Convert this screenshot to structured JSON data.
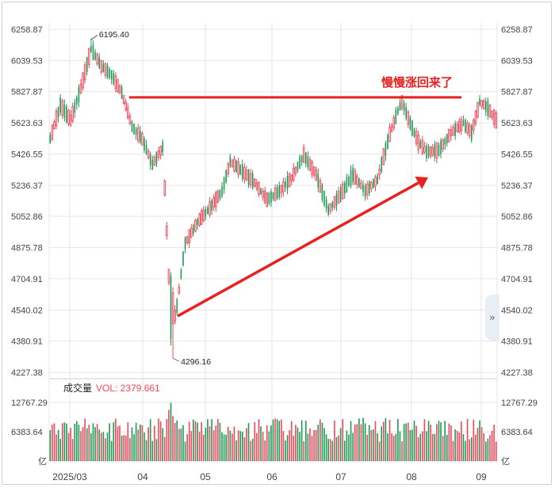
{
  "chart_data": {
    "type": "candlestick",
    "price_axis": {
      "ticks": [
        "6258.87",
        "6039.53",
        "5827.87",
        "5623.63",
        "5426.55",
        "5236.37",
        "5052.86",
        "4875.78",
        "4704.91",
        "4540.02",
        "4380.91",
        "4227.38"
      ],
      "scale": "log",
      "range": [
        4227.38,
        6258.87
      ]
    },
    "x_axis": {
      "ticks": [
        "2025/03",
        "04",
        "05",
        "06",
        "07",
        "08",
        "09"
      ]
    },
    "grid": true,
    "annotations": {
      "high_label": "6195.40",
      "low_label": "4296.16",
      "resistance_text": "慢慢涨回来了",
      "resistance_level": 5790
    },
    "candles": [],
    "volume_panel": {
      "title": "成交量",
      "vol_label": "VOL: 2379.661",
      "ticks": [
        "12767.29",
        "6383.64"
      ],
      "unit": "亿",
      "max": 12767.29
    },
    "colors": {
      "up": "#f0475a",
      "down": "#1e9a55",
      "arrow": "#e8201e",
      "grid": "#e6e6e6"
    }
  },
  "ui": {
    "expand_icon": "»"
  }
}
